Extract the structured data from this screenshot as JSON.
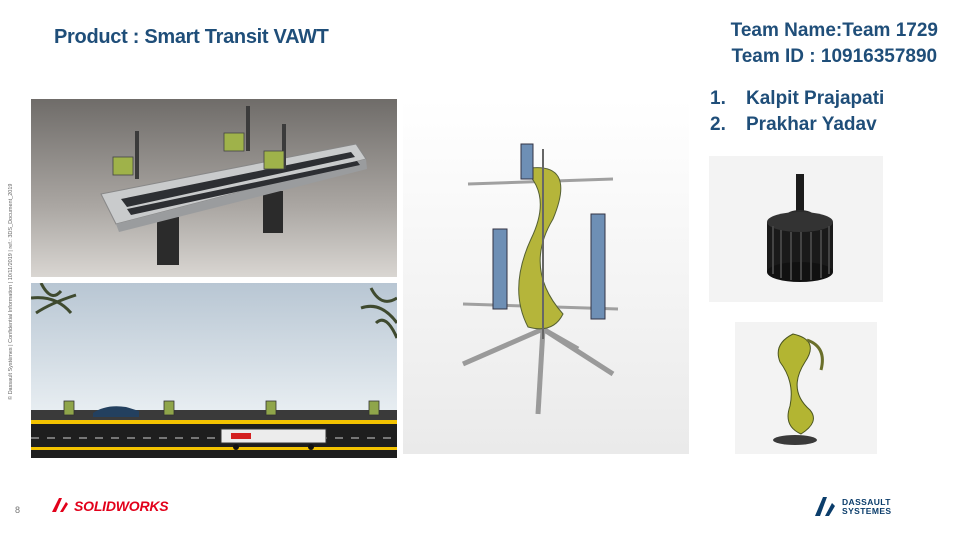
{
  "slide": {
    "title": "Product : Smart Transit VAWT",
    "team_name": "Team Name:Team 1729",
    "team_id": "Team ID : 10916357890",
    "members": [
      {
        "num": "1.",
        "name": "Kalpit Prajapati"
      },
      {
        "num": "2.",
        "name": "Prakhar Yadav"
      }
    ],
    "side_text": "© Dassault Systèmes | Confidential Information | 10/11/2019 | ref.: 3DS_Document_2019",
    "page_number": "8"
  },
  "logos": {
    "solidworks": "SOLIDWORKS",
    "dassault_line1": "DASSAULT",
    "dassault_line2": "SYSTEMES"
  },
  "colors": {
    "title": "#1f4e79",
    "solidworks_red": "#e2001a",
    "turbine_yellow": "#b5b53a",
    "blade_blue": "#6e8fb5"
  }
}
